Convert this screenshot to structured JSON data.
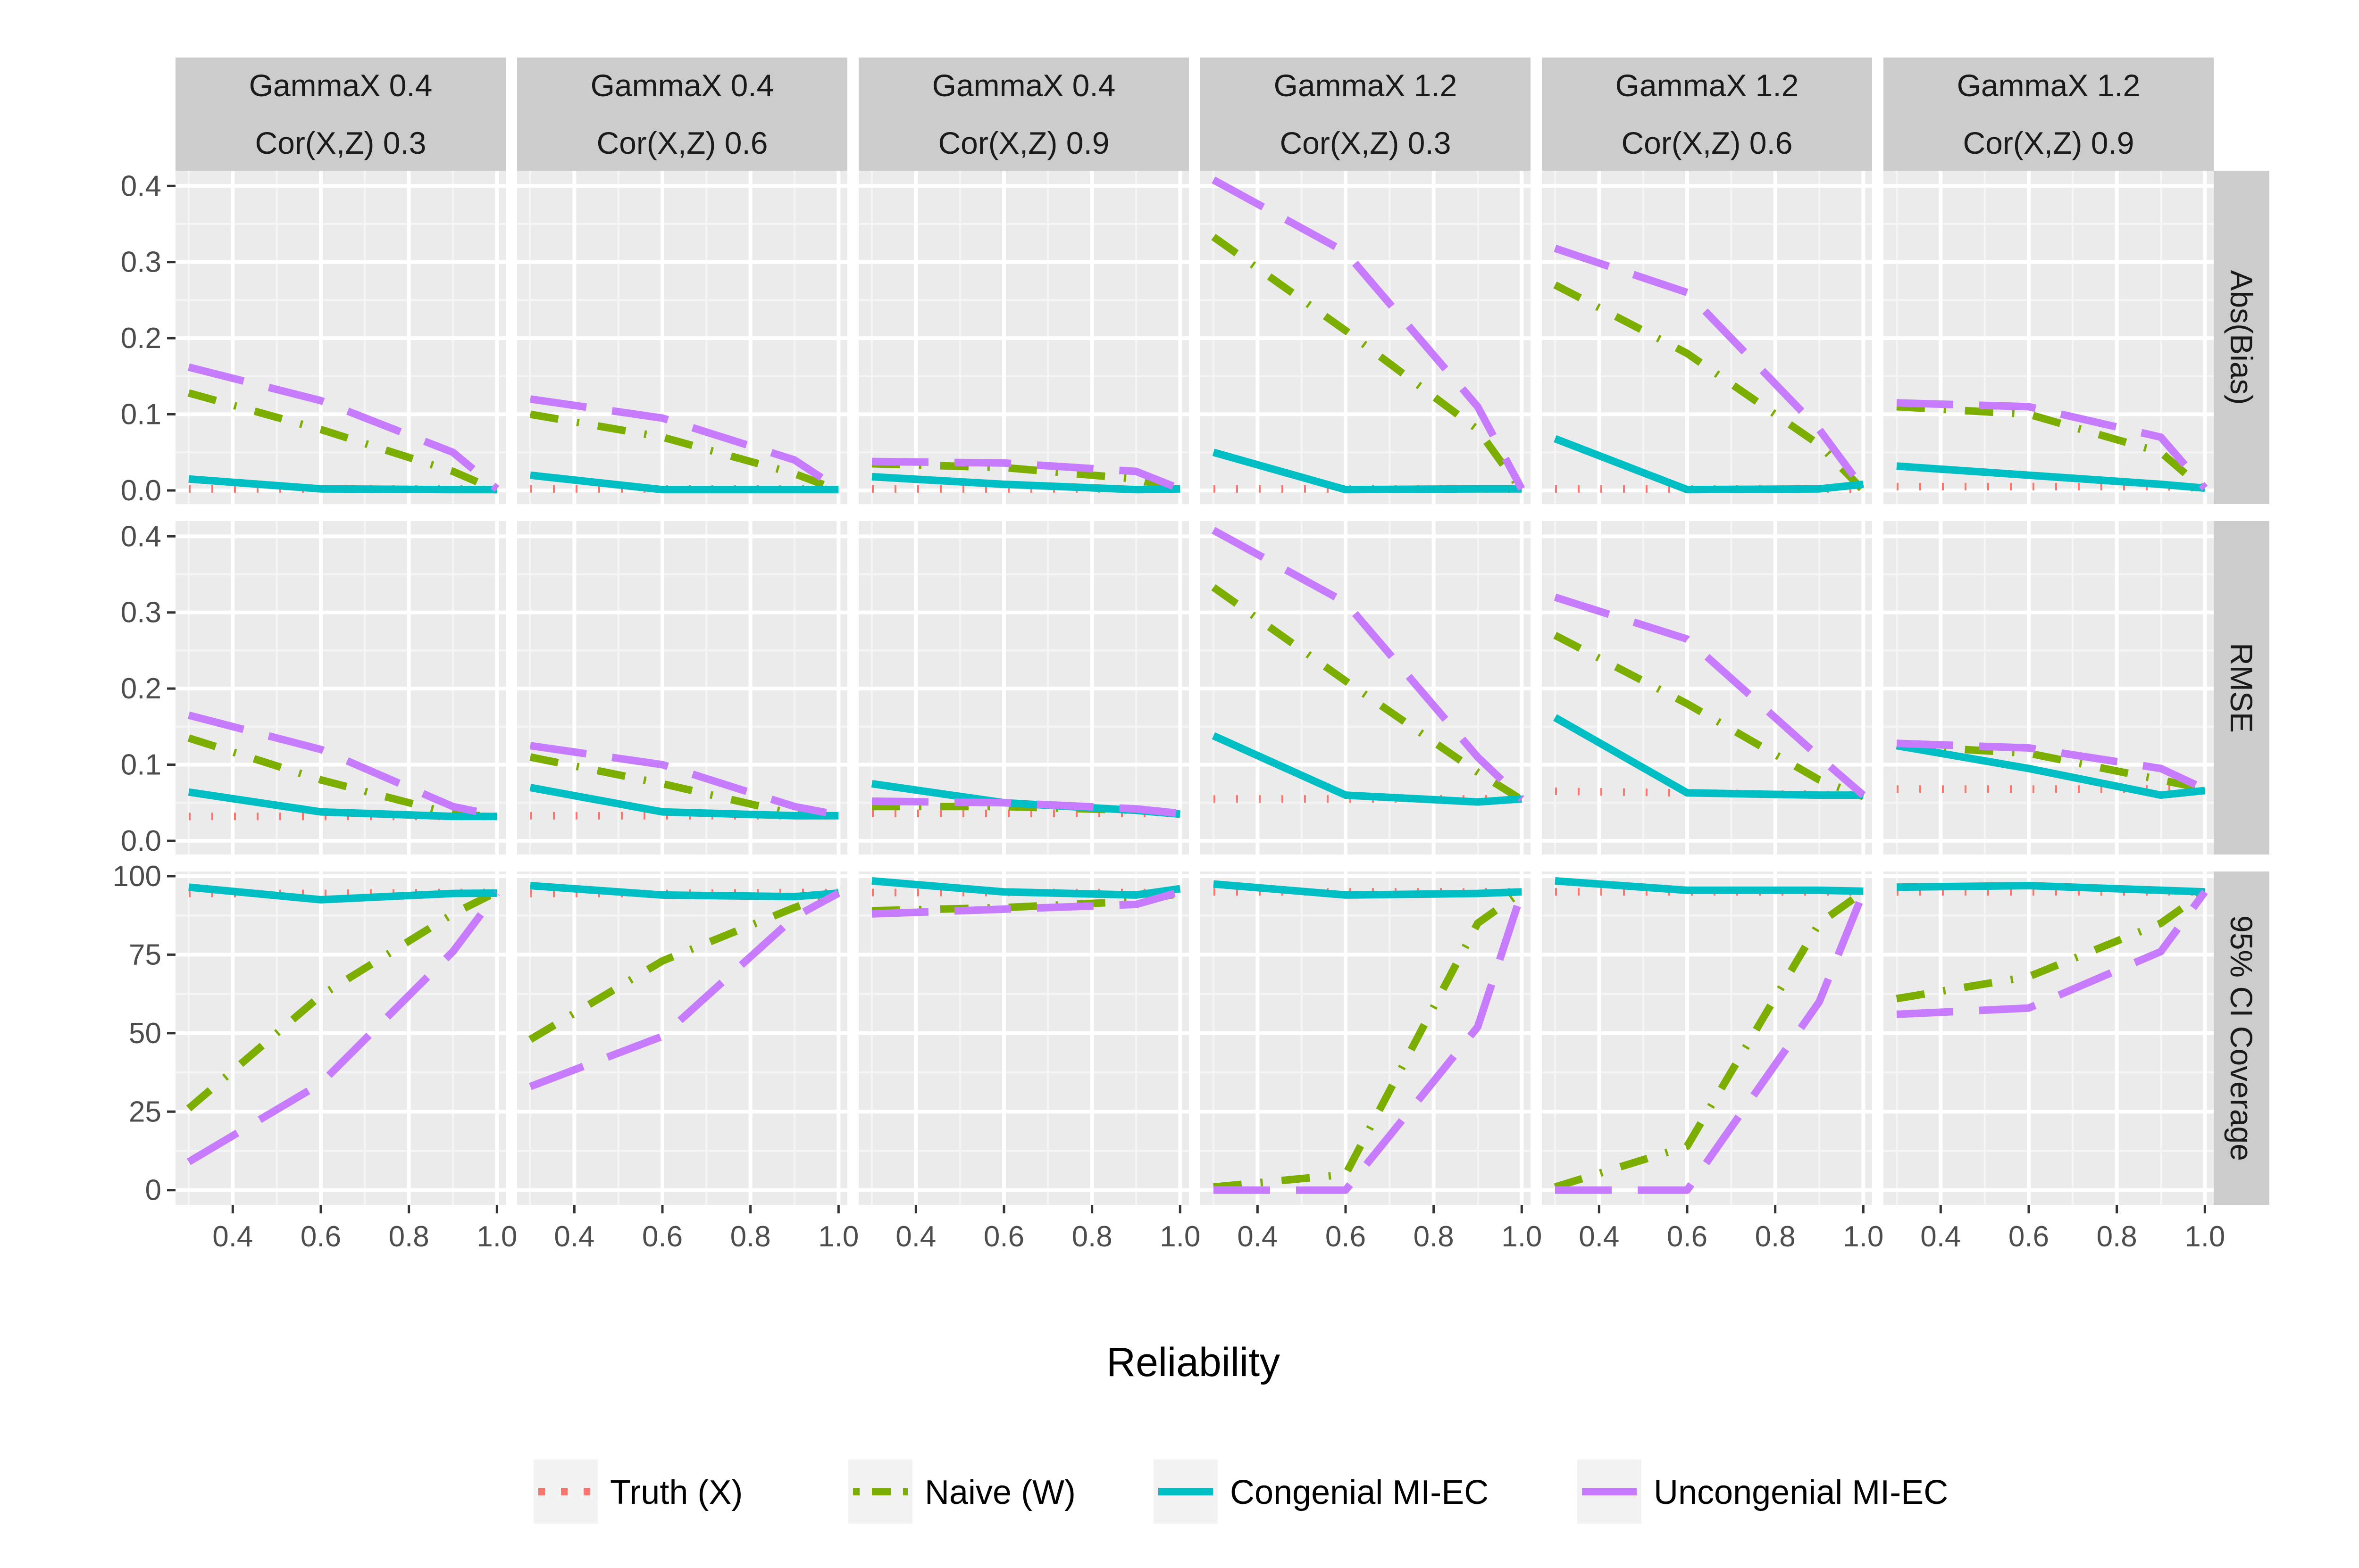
{
  "chart_data": {
    "type": "line",
    "xlabel": "Reliability",
    "x_ticks": [
      "0.4",
      "0.6",
      "0.8",
      "1.0"
    ],
    "x_tick_values": [
      0.4,
      0.6,
      0.8,
      1.0
    ],
    "xlim": [
      0.27,
      1.02
    ],
    "x": [
      0.3,
      0.6,
      0.9,
      1.0
    ],
    "columns": [
      {
        "gamma_label": "GammaX 0.4",
        "cor_label": "Cor(X,Z) 0.3"
      },
      {
        "gamma_label": "GammaX 0.4",
        "cor_label": "Cor(X,Z) 0.6"
      },
      {
        "gamma_label": "GammaX 0.4",
        "cor_label": "Cor(X,Z) 0.9"
      },
      {
        "gamma_label": "GammaX 1.2",
        "cor_label": "Cor(X,Z) 0.3"
      },
      {
        "gamma_label": "GammaX 1.2",
        "cor_label": "Cor(X,Z) 0.6"
      },
      {
        "gamma_label": "GammaX 1.2",
        "cor_label": "Cor(X,Z) 0.9"
      }
    ],
    "rows": [
      {
        "label": "Abs(Bias)",
        "ylim": [
          -0.018,
          0.42
        ],
        "ticks": [
          0.0,
          0.1,
          0.2,
          0.3,
          0.4
        ],
        "tick_labels": [
          "0.0",
          "0.1",
          "0.2",
          "0.3",
          "0.4"
        ]
      },
      {
        "label": "RMSE",
        "ylim": [
          -0.018,
          0.42
        ],
        "ticks": [
          0.0,
          0.1,
          0.2,
          0.3,
          0.4
        ],
        "tick_labels": [
          "0.0",
          "0.1",
          "0.2",
          "0.3",
          "0.4"
        ]
      },
      {
        "label": "95% CI Coverage",
        "ylim": [
          -4.7,
          101.5
        ],
        "ticks": [
          0,
          25,
          50,
          75,
          100
        ],
        "tick_labels": [
          "0",
          "25",
          "50",
          "75",
          "100"
        ]
      }
    ],
    "series": [
      {
        "name": "Truth (X)",
        "color": "#F8766D",
        "dash": "dotted"
      },
      {
        "name": "Naive (W)",
        "color": "#7CAE00",
        "dash": "dotdash"
      },
      {
        "name": "Congenial MI-EC",
        "color": "#00BFC4",
        "dash": "solid"
      },
      {
        "name": "Uncongenial MI-EC",
        "color": "#C77CFF",
        "dash": "longdash"
      }
    ],
    "values": {
      "Abs(Bias)": [
        [
          [
            0.002,
            0.002,
            0.002,
            0.001
          ],
          [
            0.128,
            0.08,
            0.025,
            0.0
          ],
          [
            0.015,
            0.002,
            0.001,
            0.001
          ],
          [
            0.162,
            0.118,
            0.05,
            0.002
          ]
        ],
        [
          [
            0.002,
            0.002,
            0.002,
            0.001
          ],
          [
            0.1,
            0.07,
            0.022,
            0.0
          ],
          [
            0.02,
            0.001,
            0.001,
            0.001
          ],
          [
            0.12,
            0.095,
            0.04,
            0.002
          ]
        ],
        [
          [
            0.002,
            0.002,
            0.002,
            0.001
          ],
          [
            0.035,
            0.03,
            0.015,
            0.0
          ],
          [
            0.018,
            0.008,
            0.001,
            0.002
          ],
          [
            0.038,
            0.036,
            0.025,
            0.002
          ]
        ],
        [
          [
            0.002,
            0.002,
            0.002,
            0.001
          ],
          [
            0.333,
            0.21,
            0.08,
            0.0
          ],
          [
            0.05,
            0.001,
            0.002,
            0.002
          ],
          [
            0.408,
            0.313,
            0.11,
            0.002
          ]
        ],
        [
          [
            0.002,
            0.002,
            0.002,
            0.001
          ],
          [
            0.27,
            0.18,
            0.06,
            0.0
          ],
          [
            0.068,
            0.001,
            0.002,
            0.008
          ],
          [
            0.318,
            0.26,
            0.08,
            0.002
          ]
        ],
        [
          [
            0.005,
            0.005,
            0.005,
            0.003
          ],
          [
            0.11,
            0.1,
            0.05,
            0.0
          ],
          [
            0.032,
            0.02,
            0.008,
            0.003
          ],
          [
            0.115,
            0.11,
            0.07,
            0.003
          ]
        ]
      ],
      "RMSE": [
        [
          [
            0.032,
            0.032,
            0.032,
            0.032
          ],
          [
            0.135,
            0.08,
            0.035,
            0.032
          ],
          [
            0.064,
            0.038,
            0.032,
            0.032
          ],
          [
            0.165,
            0.12,
            0.045,
            0.033
          ]
        ],
        [
          [
            0.033,
            0.033,
            0.033,
            0.033
          ],
          [
            0.11,
            0.075,
            0.035,
            0.033
          ],
          [
            0.07,
            0.038,
            0.033,
            0.033
          ],
          [
            0.125,
            0.1,
            0.045,
            0.034
          ]
        ],
        [
          [
            0.036,
            0.036,
            0.036,
            0.036
          ],
          [
            0.045,
            0.045,
            0.04,
            0.036
          ],
          [
            0.075,
            0.05,
            0.04,
            0.035
          ],
          [
            0.052,
            0.05,
            0.042,
            0.036
          ]
        ],
        [
          [
            0.055,
            0.055,
            0.055,
            0.055
          ],
          [
            0.333,
            0.21,
            0.09,
            0.054
          ],
          [
            0.138,
            0.06,
            0.051,
            0.055
          ],
          [
            0.408,
            0.313,
            0.11,
            0.055
          ]
        ],
        [
          [
            0.065,
            0.063,
            0.061,
            0.06
          ],
          [
            0.27,
            0.18,
            0.08,
            0.058
          ],
          [
            0.162,
            0.063,
            0.06,
            0.06
          ],
          [
            0.32,
            0.265,
            0.11,
            0.06
          ]
        ],
        [
          [
            0.068,
            0.068,
            0.068,
            0.068
          ],
          [
            0.125,
            0.115,
            0.08,
            0.068
          ],
          [
            0.125,
            0.095,
            0.06,
            0.066
          ],
          [
            0.128,
            0.122,
            0.095,
            0.068
          ]
        ]
      ],
      "95% CI Coverage": [
        [
          [
            94.5,
            94.5,
            94.8,
            94.8
          ],
          [
            26,
            62,
            88,
            95
          ],
          [
            96.5,
            92.5,
            94.5,
            94.6
          ],
          [
            9,
            34,
            76,
            94.6
          ]
        ],
        [
          [
            94.5,
            94.5,
            94.8,
            94.8
          ],
          [
            48,
            73,
            90,
            95
          ],
          [
            97,
            94,
            93.5,
            94.6
          ],
          [
            33,
            49,
            87,
            94.6
          ]
        ],
        [
          [
            94.8,
            94.8,
            94.8,
            94.8
          ],
          [
            89,
            90,
            92,
            94.5
          ],
          [
            98.5,
            95,
            94,
            96
          ],
          [
            88,
            89.5,
            91,
            95
          ]
        ],
        [
          [
            95.0,
            95.0,
            95.0,
            95.0
          ],
          [
            1,
            5,
            85,
            95
          ],
          [
            97.5,
            94,
            94.5,
            95
          ],
          [
            0,
            0,
            52,
            94.8
          ]
        ],
        [
          [
            95.0,
            95.0,
            95.0,
            95.0
          ],
          [
            1,
            14,
            85,
            95
          ],
          [
            98.5,
            95.5,
            95.5,
            95.2
          ],
          [
            0,
            0,
            60,
            94.8
          ]
        ],
        [
          [
            95.0,
            95.0,
            95.0,
            95.0
          ],
          [
            61,
            68,
            85,
            95
          ],
          [
            96.5,
            97,
            95.5,
            95
          ],
          [
            56,
            58,
            76,
            95
          ]
        ]
      ]
    },
    "grid": true,
    "legend_placement": "bottom"
  }
}
